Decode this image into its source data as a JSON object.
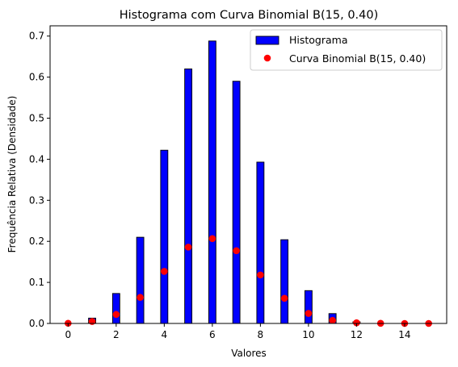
{
  "chart_data": {
    "type": "bar",
    "title": "Histograma com Curva Binomial B(15, 0.40)",
    "xlabel": "Valores",
    "ylabel": "Frequência Relativa (Densidade)",
    "xlim": [
      -0.75,
      15.75
    ],
    "ylim": [
      0,
      0.725
    ],
    "xticks": [
      0,
      2,
      4,
      6,
      8,
      10,
      12,
      14
    ],
    "yticks": [
      0.0,
      0.1,
      0.2,
      0.3,
      0.4,
      0.5,
      0.6,
      0.7
    ],
    "legend_position": "top-right",
    "grid": false,
    "series": [
      {
        "name": "Histograma",
        "kind": "bar",
        "color": "#0000ff",
        "edgecolor": "#000000",
        "x": [
          1,
          2,
          3,
          4,
          5,
          6,
          7,
          8,
          9,
          10,
          11,
          12
        ],
        "values": [
          0.013,
          0.073,
          0.21,
          0.422,
          0.62,
          0.688,
          0.59,
          0.393,
          0.204,
          0.08,
          0.024,
          0.004
        ]
      },
      {
        "name": "Curva Binomial B(15, 0.40)",
        "kind": "scatter",
        "color": "#ff0000",
        "x": [
          0,
          1,
          2,
          3,
          4,
          5,
          6,
          7,
          8,
          9,
          10,
          11,
          12,
          13,
          14,
          15
        ],
        "values": [
          0.0005,
          0.0047,
          0.0219,
          0.0634,
          0.1268,
          0.1859,
          0.2066,
          0.1771,
          0.1181,
          0.0612,
          0.0245,
          0.0074,
          0.0016,
          0.0003,
          0.0,
          0.0
        ]
      }
    ]
  }
}
